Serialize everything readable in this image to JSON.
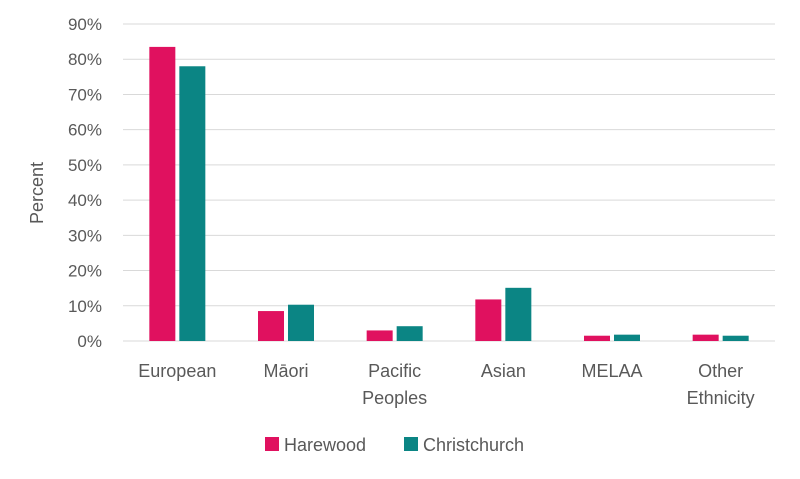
{
  "chart_data": {
    "type": "bar",
    "ylabel": "Percent",
    "ylim": [
      0,
      90
    ],
    "yticks": [
      "0%",
      "10%",
      "20%",
      "30%",
      "40%",
      "50%",
      "60%",
      "70%",
      "80%",
      "90%"
    ],
    "categories": [
      [
        "European"
      ],
      [
        "Māori"
      ],
      [
        "Pacific",
        "Peoples"
      ],
      [
        "Asian"
      ],
      [
        "MELAA"
      ],
      [
        "Other",
        "Ethnicity"
      ]
    ],
    "series": [
      {
        "name": "Harewood",
        "color": "#e0115f",
        "values": [
          83.5,
          8.5,
          3.0,
          11.8,
          1.5,
          1.8
        ]
      },
      {
        "name": "Christchurch",
        "color": "#0b8584",
        "values": [
          78.0,
          10.3,
          4.2,
          15.1,
          1.8,
          1.5
        ]
      }
    ],
    "grid": true,
    "legend": "bottom"
  }
}
